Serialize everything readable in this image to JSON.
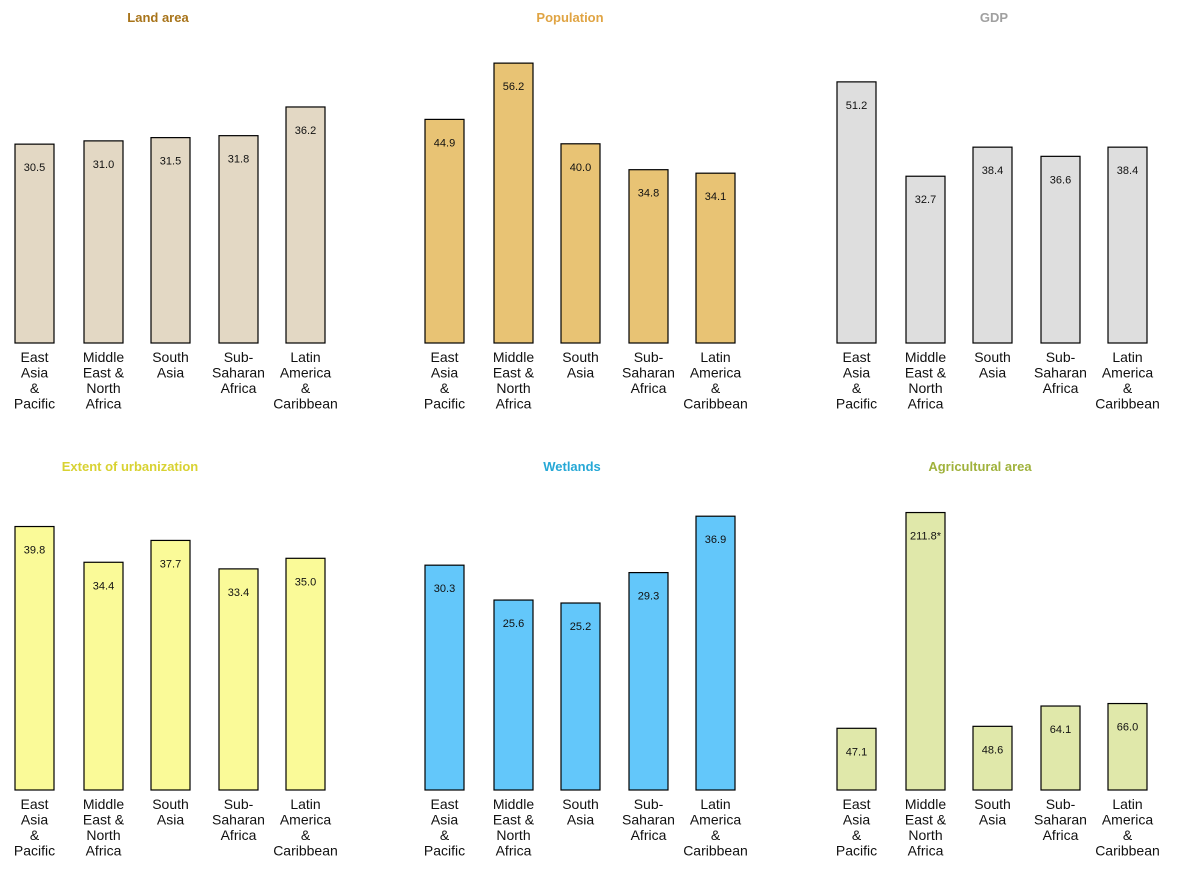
{
  "chart_data": [
    {
      "type": "bar",
      "title": "Land area",
      "title_color": "#a8741a",
      "bar_color": "#e3d8c4",
      "categories": [
        "East Asia & Pacific",
        "Middle East & North Africa",
        "South Asia",
        "Sub-Saharan Africa",
        "Latin America & Caribbean"
      ],
      "values": [
        30.5,
        31.0,
        31.5,
        31.8,
        36.2
      ],
      "value_labels": [
        "30.5",
        "31.0",
        "31.5",
        "31.8",
        "36.2"
      ]
    },
    {
      "type": "bar",
      "title": "Population",
      "title_color": "#e0a443",
      "bar_color": "#e8c374",
      "categories": [
        "East Asia & Pacific",
        "Middle East & North Africa",
        "South Asia",
        "Sub-Saharan Africa",
        "Latin America & Caribbean"
      ],
      "values": [
        44.9,
        56.2,
        40.0,
        34.8,
        34.1
      ],
      "value_labels": [
        "44.9",
        "56.2",
        "40.0",
        "34.8",
        "34.1"
      ]
    },
    {
      "type": "bar",
      "title": "GDP",
      "title_color": "#a0a0a0",
      "bar_color": "#dedede",
      "categories": [
        "East Asia & Pacific",
        "Middle East & North Africa",
        "South Asia",
        "Sub-Saharan Africa",
        "Latin America & Caribbean"
      ],
      "values": [
        51.2,
        32.7,
        38.4,
        36.6,
        38.4
      ],
      "value_labels": [
        "51.2",
        "32.7",
        "38.4",
        "36.6",
        "38.4"
      ]
    },
    {
      "type": "bar",
      "title": "Extent of urbanization",
      "title_color": "#d8d232",
      "bar_color": "#fafa98",
      "categories": [
        "East Asia & Pacific",
        "Middle East & North Africa",
        "South Asia",
        "Sub-Saharan Africa",
        "Latin America & Caribbean"
      ],
      "values": [
        39.8,
        34.4,
        37.7,
        33.4,
        35.0
      ],
      "value_labels": [
        "39.8",
        "34.4",
        "37.7",
        "33.4",
        "35.0"
      ]
    },
    {
      "type": "bar",
      "title": "Wetlands",
      "title_color": "#26a8d6",
      "bar_color": "#63c7fa",
      "categories": [
        "East Asia & Pacific",
        "Middle East & North Africa",
        "South Asia",
        "Sub-Saharan Africa",
        "Latin America & Caribbean"
      ],
      "values": [
        30.3,
        25.6,
        25.2,
        29.3,
        36.9
      ],
      "value_labels": [
        "30.3",
        "25.6",
        "25.2",
        "29.3",
        "36.9"
      ]
    },
    {
      "type": "bar",
      "title": "Agricultural area",
      "title_color": "#a0b23c",
      "bar_color": "#e0e8aa",
      "categories": [
        "East Asia & Pacific",
        "Middle East & North Africa",
        "South Asia",
        "Sub-Saharan Africa",
        "Latin America & Caribbean"
      ],
      "values": [
        47.1,
        211.8,
        48.6,
        64.1,
        66.0
      ],
      "value_labels": [
        "47.1",
        "211.8*",
        "48.6",
        "64.1",
        "66.0"
      ]
    }
  ],
  "category_lines": [
    [
      "East",
      "Asia",
      "&",
      "Pacific"
    ],
    [
      "Middle",
      "East &",
      "North",
      "Africa"
    ],
    [
      "South",
      "Asia"
    ],
    [
      "Sub-",
      "Saharan",
      "Africa"
    ],
    [
      "Latin",
      "America",
      "&",
      "Caribbean"
    ]
  ]
}
